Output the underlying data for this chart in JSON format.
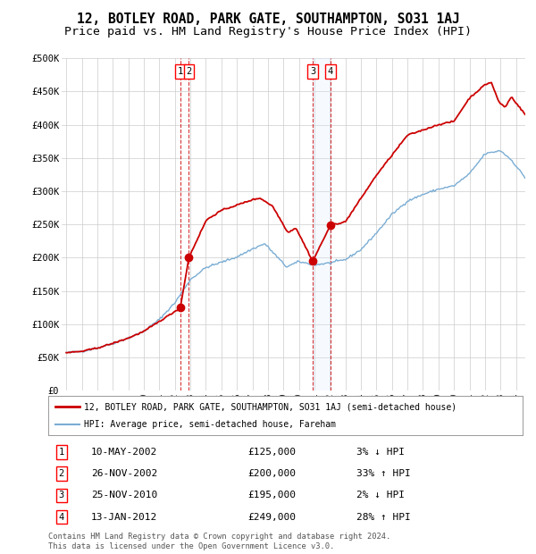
{
  "title": "12, BOTLEY ROAD, PARK GATE, SOUTHAMPTON, SO31 1AJ",
  "subtitle": "Price paid vs. HM Land Registry's House Price Index (HPI)",
  "footer": "Contains HM Land Registry data © Crown copyright and database right 2024.\nThis data is licensed under the Open Government Licence v3.0.",
  "legend_red": "12, BOTLEY ROAD, PARK GATE, SOUTHAMPTON, SO31 1AJ (semi-detached house)",
  "legend_blue": "HPI: Average price, semi-detached house, Fareham",
  "transactions": [
    {
      "num": 1,
      "price": 125000,
      "x_num": 2002.36
    },
    {
      "num": 2,
      "price": 200000,
      "x_num": 2002.9
    },
    {
      "num": 3,
      "price": 195000,
      "x_num": 2010.9
    },
    {
      "num": 4,
      "price": 249000,
      "x_num": 2012.04
    }
  ],
  "table_rows": [
    {
      "num": 1,
      "date_str": "10-MAY-2002",
      "price_str": "£125,000",
      "pct_str": "3%",
      "dir": "↓"
    },
    {
      "num": 2,
      "date_str": "26-NOV-2002",
      "price_str": "£200,000",
      "pct_str": "33%",
      "dir": "↑"
    },
    {
      "num": 3,
      "date_str": "25-NOV-2010",
      "price_str": "£195,000",
      "pct_str": "2%",
      "dir": "↓"
    },
    {
      "num": 4,
      "date_str": "13-JAN-2012",
      "price_str": "£249,000",
      "pct_str": "28%",
      "dir": "↑"
    }
  ],
  "ylim": [
    0,
    500000
  ],
  "yticks": [
    0,
    50000,
    100000,
    150000,
    200000,
    250000,
    300000,
    350000,
    400000,
    450000,
    500000
  ],
  "ytick_labels": [
    "£0",
    "£50K",
    "£100K",
    "£150K",
    "£200K",
    "£250K",
    "£300K",
    "£350K",
    "£400K",
    "£450K",
    "£500K"
  ],
  "xlim_start": 1994.7,
  "xlim_end": 2024.6,
  "red_color": "#cc0000",
  "blue_color": "#7aadd4",
  "vspan_color": "#ddeeff",
  "bg_color": "#ffffff",
  "grid_color": "#cccccc",
  "title_fontsize": 10.5,
  "subtitle_fontsize": 9.5
}
